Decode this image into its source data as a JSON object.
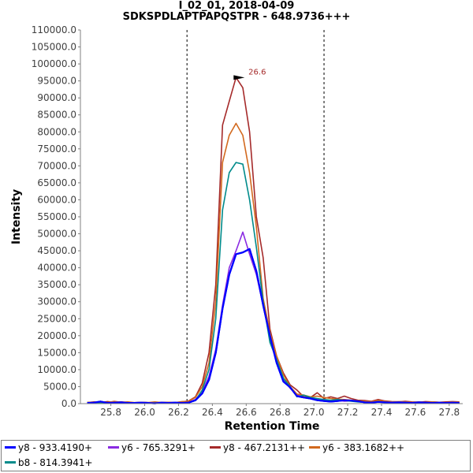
{
  "chart_data": {
    "type": "line",
    "title": "I_02_01, 2018-04-09",
    "subtitle": "SDKSPDLAPTPAPQSTPR - 648.9736+++",
    "xlabel": "Retention Time",
    "ylabel": "Intensity",
    "xlim": [
      25.62,
      27.88
    ],
    "ylim": [
      0,
      110000
    ],
    "x_ticks": [
      "25.8",
      "26.0",
      "26.2",
      "26.4",
      "26.6",
      "26.8",
      "27.0",
      "27.2",
      "27.4",
      "27.6",
      "27.8"
    ],
    "y_ticks": [
      "0.0",
      "5000.0",
      "10000.0",
      "15000.0",
      "20000.0",
      "25000.0",
      "30000.0",
      "35000.0",
      "40000.0",
      "45000.0",
      "50000.0",
      "55000.0",
      "60000.0",
      "65000.0",
      "70000.0",
      "75000.0",
      "80000.0",
      "85000.0",
      "90000.0",
      "95000.0",
      "100000.0",
      "105000.0",
      "110000.0"
    ],
    "vlines": [
      26.25,
      27.06
    ],
    "peak_annotation": {
      "x": 26.6,
      "y": 96000,
      "label": "26.6"
    },
    "x": [
      25.66,
      25.7,
      25.74,
      25.78,
      25.82,
      25.86,
      25.9,
      25.94,
      25.98,
      26.02,
      26.06,
      26.1,
      26.14,
      26.18,
      26.22,
      26.26,
      26.3,
      26.34,
      26.38,
      26.42,
      26.46,
      26.5,
      26.54,
      26.58,
      26.62,
      26.66,
      26.7,
      26.74,
      26.78,
      26.82,
      26.86,
      26.9,
      26.94,
      26.98,
      27.02,
      27.06,
      27.1,
      27.14,
      27.18,
      27.22,
      27.26,
      27.3,
      27.34,
      27.38,
      27.42,
      27.46,
      27.5,
      27.54,
      27.58,
      27.62,
      27.66,
      27.7,
      27.74,
      27.78,
      27.82,
      27.86
    ],
    "series": [
      {
        "name": "y8 - 933.4190+",
        "color": "#0000ff",
        "values": [
          200,
          300,
          600,
          200,
          300,
          400,
          200,
          200,
          300,
          200,
          100,
          300,
          200,
          300,
          200,
          300,
          1000,
          3000,
          7000,
          15000,
          28000,
          38000,
          44000,
          44500,
          45500,
          39000,
          29000,
          20000,
          12000,
          6500,
          4800,
          2200,
          1800,
          1500,
          1000,
          800,
          600,
          800,
          1000,
          900,
          700,
          400,
          300,
          500,
          400,
          300,
          400,
          300,
          200,
          400,
          300,
          200,
          300,
          200,
          300,
          200
        ]
      },
      {
        "name": "y6 - 765.3291+",
        "color": "#8a2be2",
        "values": [
          300,
          200,
          400,
          300,
          200,
          500,
          300,
          200,
          300,
          200,
          300,
          200,
          400,
          200,
          300,
          400,
          1200,
          3500,
          8000,
          16000,
          29000,
          40000,
          45000,
          50500,
          44000,
          38000,
          29000,
          19000,
          12000,
          7000,
          4500,
          2500,
          2000,
          1600,
          1200,
          900,
          800,
          1000,
          700,
          800,
          600,
          500,
          400,
          600,
          400,
          300,
          500,
          400,
          300,
          400,
          300,
          400,
          300,
          200,
          300,
          300
        ]
      },
      {
        "name": "y8 - 467.2131++",
        "color": "#a52a2a",
        "values": [
          300,
          500,
          300,
          600,
          400,
          500,
          300,
          200,
          400,
          300,
          200,
          400,
          300,
          200,
          500,
          800,
          2000,
          6000,
          15000,
          35000,
          82000,
          89000,
          96000,
          93000,
          80000,
          55000,
          43000,
          22000,
          14000,
          9000,
          5500,
          4000,
          2000,
          1800,
          3200,
          1500,
          2000,
          1500,
          2200,
          1500,
          1000,
          900,
          700,
          1200,
          800,
          600,
          500,
          700,
          500,
          400,
          600,
          500,
          400,
          500,
          600,
          500
        ]
      },
      {
        "name": "y6 - 383.1682++",
        "color": "#d2691e",
        "values": [
          400,
          300,
          500,
          300,
          700,
          400,
          500,
          300,
          400,
          300,
          500,
          300,
          400,
          300,
          600,
          700,
          1800,
          5000,
          12000,
          30000,
          71000,
          79000,
          82500,
          79000,
          68000,
          52000,
          31000,
          21000,
          14000,
          8500,
          5000,
          2800,
          2500,
          2000,
          2200,
          1800,
          1500,
          1300,
          1200,
          1000,
          800,
          700,
          600,
          900,
          700,
          500,
          600,
          500,
          400,
          500,
          400,
          500,
          400,
          300,
          500,
          400
        ]
      },
      {
        "name": "b8 - 814.3941+",
        "color": "#008b8b",
        "values": [
          100,
          200,
          100,
          200,
          100,
          300,
          200,
          100,
          200,
          100,
          200,
          100,
          200,
          100,
          200,
          300,
          900,
          4000,
          10000,
          25000,
          57000,
          68000,
          71000,
          70500,
          60000,
          46000,
          30000,
          18000,
          13000,
          7500,
          5000,
          2000,
          2500,
          1800,
          1500,
          1200,
          1000,
          1200,
          900,
          700,
          500,
          400,
          300,
          600,
          400,
          300,
          400,
          300,
          200,
          300,
          200,
          300,
          200,
          100,
          200,
          100
        ]
      }
    ]
  }
}
